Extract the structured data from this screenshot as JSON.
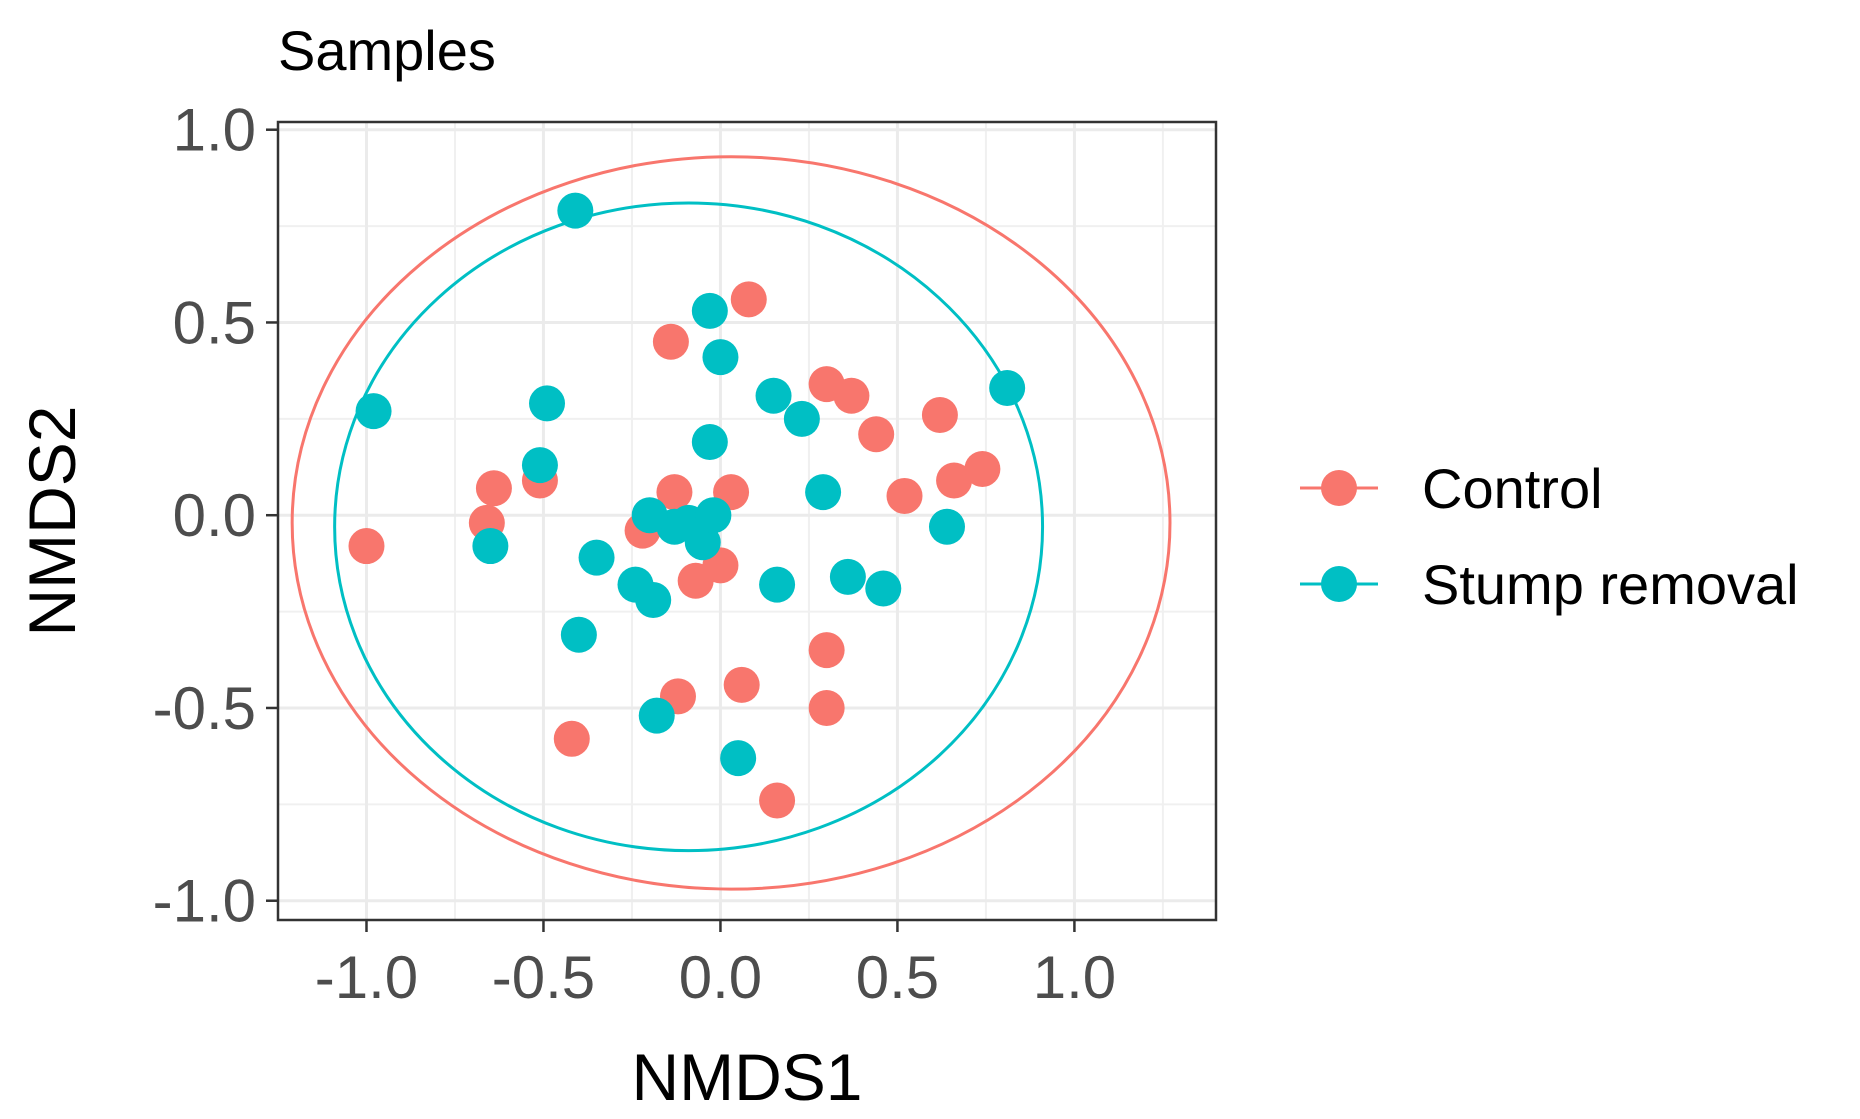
{
  "chart_data": {
    "type": "scatter",
    "title": "Samples",
    "xlabel": "NMDS1",
    "ylabel": "NMDS2",
    "xlim": [
      -1.25,
      1.4
    ],
    "ylim": [
      -1.05,
      1.02
    ],
    "xticks": [
      -1.0,
      -0.5,
      0.0,
      0.5,
      1.0
    ],
    "xtick_labels": [
      "-1.0",
      "-0.5",
      "0.0",
      "0.5",
      "1.0"
    ],
    "yticks": [
      -1.0,
      -0.5,
      0.0,
      0.5,
      1.0
    ],
    "ytick_labels": [
      "-1.0",
      "-0.5",
      "0.0",
      "0.5",
      "1.0"
    ],
    "grid": true,
    "legend_position": "right",
    "series": [
      {
        "name": "Control",
        "color": "#F8766D",
        "x": [
          -1.0,
          -0.64,
          -0.66,
          -0.51,
          -0.14,
          -0.13,
          0.03,
          0.08,
          0.3,
          0.37,
          0.44,
          0.62,
          0.66,
          0.74,
          0.52,
          0.0,
          -0.07,
          -0.22,
          -0.12,
          0.06,
          0.3,
          0.3,
          -0.42,
          0.16
        ],
        "y": [
          -0.08,
          0.07,
          -0.02,
          0.09,
          0.45,
          0.06,
          0.06,
          0.56,
          0.34,
          0.31,
          0.21,
          0.26,
          0.09,
          0.12,
          0.05,
          -0.13,
          -0.17,
          -0.04,
          -0.47,
          -0.44,
          -0.35,
          -0.5,
          -0.58,
          -0.74
        ],
        "ellipse": {
          "cx": 0.03,
          "cy": -0.02,
          "rx": 1.24,
          "ry": 0.95
        }
      },
      {
        "name": "Stump removal",
        "color": "#00BFC4",
        "x": [
          -0.41,
          -0.98,
          -0.49,
          -0.51,
          -0.65,
          -0.35,
          -0.24,
          -0.19,
          -0.18,
          -0.13,
          -0.09,
          -0.05,
          -0.03,
          -0.03,
          -0.02,
          0.0,
          0.15,
          0.23,
          0.29,
          0.36,
          0.46,
          0.64,
          0.81,
          0.16,
          -0.4,
          -0.2,
          0.05
        ],
        "y": [
          0.79,
          0.27,
          0.29,
          0.13,
          -0.08,
          -0.11,
          -0.18,
          -0.22,
          -0.52,
          -0.03,
          -0.02,
          -0.07,
          0.19,
          0.53,
          0.0,
          0.41,
          0.31,
          0.25,
          0.06,
          -0.16,
          -0.19,
          -0.03,
          0.33,
          -0.18,
          -0.31,
          0.0,
          -0.63
        ],
        "ellipse": {
          "cx": -0.09,
          "cy": -0.03,
          "rx": 1.0,
          "ry": 0.84
        }
      }
    ]
  }
}
